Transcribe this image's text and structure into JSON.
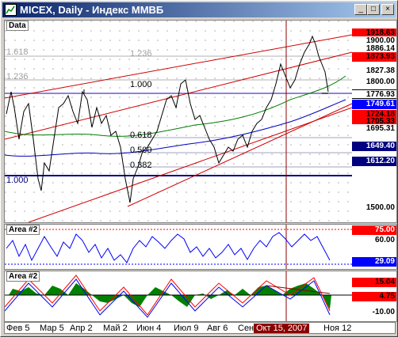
{
  "window": {
    "title": "MICEX, Daily - Индекс ММВБ",
    "min": "_",
    "max": "□",
    "close": "×"
  },
  "main": {
    "label": "Data",
    "fibo": {
      "f1618": "1.618",
      "f1236a": "1.236",
      "f1236b": "1.236",
      "f1000a": "1.000",
      "f1000b": "1.000",
      "f0618": "0.618",
      "f0500": "0.500",
      "f0382": "0.382"
    },
    "tags": [
      {
        "text": "1918.63",
        "bg": "#ff0000",
        "color": "#000000"
      },
      {
        "text": "1900.00",
        "bg": "#ffffff",
        "color": "#000000"
      },
      {
        "text": "1886.14",
        "bg": "#ffffff",
        "color": "#000000"
      },
      {
        "text": "1873.93",
        "bg": "#ff0000",
        "color": "#000000"
      },
      {
        "text": "1827.38",
        "bg": "#ffffff",
        "color": "#000000"
      },
      {
        "text": "1800.00",
        "bg": "#ffffff",
        "color": "#000000"
      },
      {
        "text": "1776.93",
        "bg": "#ffffff",
        "color": "#000000"
      },
      {
        "text": "1749.61",
        "bg": "#0000ff",
        "color": "#ffffff"
      },
      {
        "text": "1724.18",
        "bg": "#ff0000",
        "color": "#000000"
      },
      {
        "text": "1705.33",
        "bg": "#ff0000",
        "color": "#000000"
      },
      {
        "text": "1695.31",
        "bg": "#ffffff",
        "color": "#000000"
      },
      {
        "text": "1649.40",
        "bg": "#000080",
        "color": "#ffffff"
      },
      {
        "text": "1612.20",
        "bg": "#000080",
        "color": "#ffffff"
      },
      {
        "text": "1500.00",
        "bg": "#ffffff",
        "color": "#000000"
      }
    ]
  },
  "area1": {
    "label": "Area #2",
    "tags": [
      {
        "text": "75.00",
        "bg": "#ff0000",
        "color": "#ffffff"
      },
      {
        "text": "60.00",
        "bg": "#ffffff",
        "color": "#000000"
      },
      {
        "text": "29.09",
        "bg": "#0000ff",
        "color": "#ffffff"
      }
    ]
  },
  "area2": {
    "label": "Area #2",
    "tags": [
      {
        "text": "15.04",
        "bg": "#ff0000",
        "color": "#000000"
      },
      {
        "text": "4.75",
        "bg": "#ff0000",
        "color": "#000000"
      },
      {
        "text": "-10.00",
        "bg": "#ffffff",
        "color": "#000000"
      }
    ]
  },
  "xaxis": {
    "labels": [
      "Фев 5",
      "Мар 5",
      "Апр 2",
      "Май 2",
      "Июн 4",
      "Июл 9",
      "Авг 6",
      "Сен",
      "Окт 15, 2007",
      "Ноя 12"
    ]
  },
  "colors": {
    "accent": "#8b0000",
    "blue": "#0000ff",
    "red": "#ff0000",
    "green": "#008000"
  }
}
